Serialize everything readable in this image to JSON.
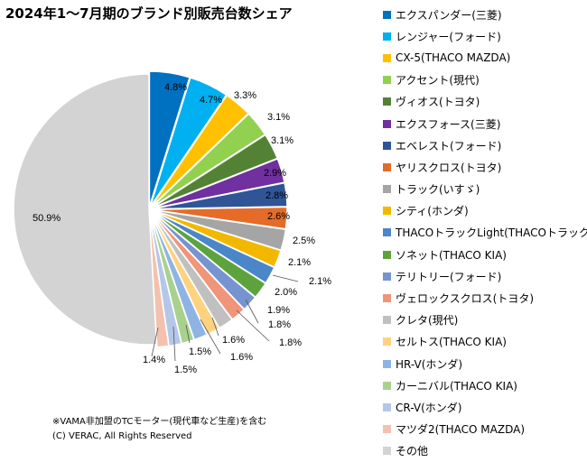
{
  "chart_data": {
    "type": "pie",
    "title": "2024年1～7月期のブランド別販売台数シェア",
    "unit": "%",
    "legend_position": "right",
    "slices": [
      {
        "name": "エクスパンダー(三菱)",
        "value": 4.8,
        "label": "4.8%",
        "color": "#0070C0"
      },
      {
        "name": "レンジャー(フォード)",
        "value": 4.7,
        "label": "4.7%",
        "color": "#00B0F0"
      },
      {
        "name": "CX-5(THACO MAZDA)",
        "value": 3.3,
        "label": "3.3%",
        "color": "#FFC000"
      },
      {
        "name": "アクセント(現代)",
        "value": 3.1,
        "label": "3.1%",
        "color": "#92D050"
      },
      {
        "name": "ヴィオス(トヨタ)",
        "value": 3.1,
        "label": "3.1%",
        "color": "#548235"
      },
      {
        "name": "エクスフォース(三菱)",
        "value": 2.9,
        "label": "2.9%",
        "color": "#7030A0"
      },
      {
        "name": "エベレスト(フォード)",
        "value": 2.8,
        "label": "2.8%",
        "color": "#2F5597"
      },
      {
        "name": "ヤリスクロス(トヨタ)",
        "value": 2.6,
        "label": "2.6%",
        "color": "#E46C28"
      },
      {
        "name": "トラック(いすゞ)",
        "value": 2.5,
        "label": "2.5%",
        "color": "#A5A5A5"
      },
      {
        "name": "シティ(ホンダ)",
        "value": 2.1,
        "label": "2.1%",
        "color": "#F2B800"
      },
      {
        "name": "THACOトラックLight(THACOトラック)",
        "value": 2.1,
        "label": "2.1%",
        "color": "#4A86C8"
      },
      {
        "name": "ソネット(THACO KIA)",
        "value": 2.0,
        "label": "2.0%",
        "color": "#5DA33D"
      },
      {
        "name": "テリトリー(フォード)",
        "value": 1.9,
        "label": "1.9%",
        "color": "#7594D0"
      },
      {
        "name": "ヴェロックスクロス(トヨタ)",
        "value": 1.8,
        "label": "1.8%",
        "color": "#F0957A"
      },
      {
        "name": "クレタ(現代)",
        "value": 1.8,
        "label": "1.8%",
        "color": "#C0C0C0"
      },
      {
        "name": "セルトス(THACO KIA)",
        "value": 1.6,
        "label": "1.6%",
        "color": "#FFD27F"
      },
      {
        "name": "HR-V(ホンダ)",
        "value": 1.6,
        "label": "1.6%",
        "color": "#8FB4E3"
      },
      {
        "name": "カーニバル(THACO KIA)",
        "value": 1.5,
        "label": "1.5%",
        "color": "#A9D18E"
      },
      {
        "name": "CR-V(ホンダ)",
        "value": 1.5,
        "label": "1.5%",
        "color": "#B4C7E7"
      },
      {
        "name": "マツダ2(THACO MAZDA)",
        "value": 1.4,
        "label": "1.4%",
        "color": "#F4C1AE"
      },
      {
        "name": "その他",
        "value": 50.9,
        "label": "50.9%",
        "color": "#D3D3D3"
      }
    ]
  },
  "footnote": {
    "line1": "※VAMA非加盟のTCモーター(現代車など生産)を含む",
    "line2": "(C) VERAC, All Rights Reserved"
  }
}
